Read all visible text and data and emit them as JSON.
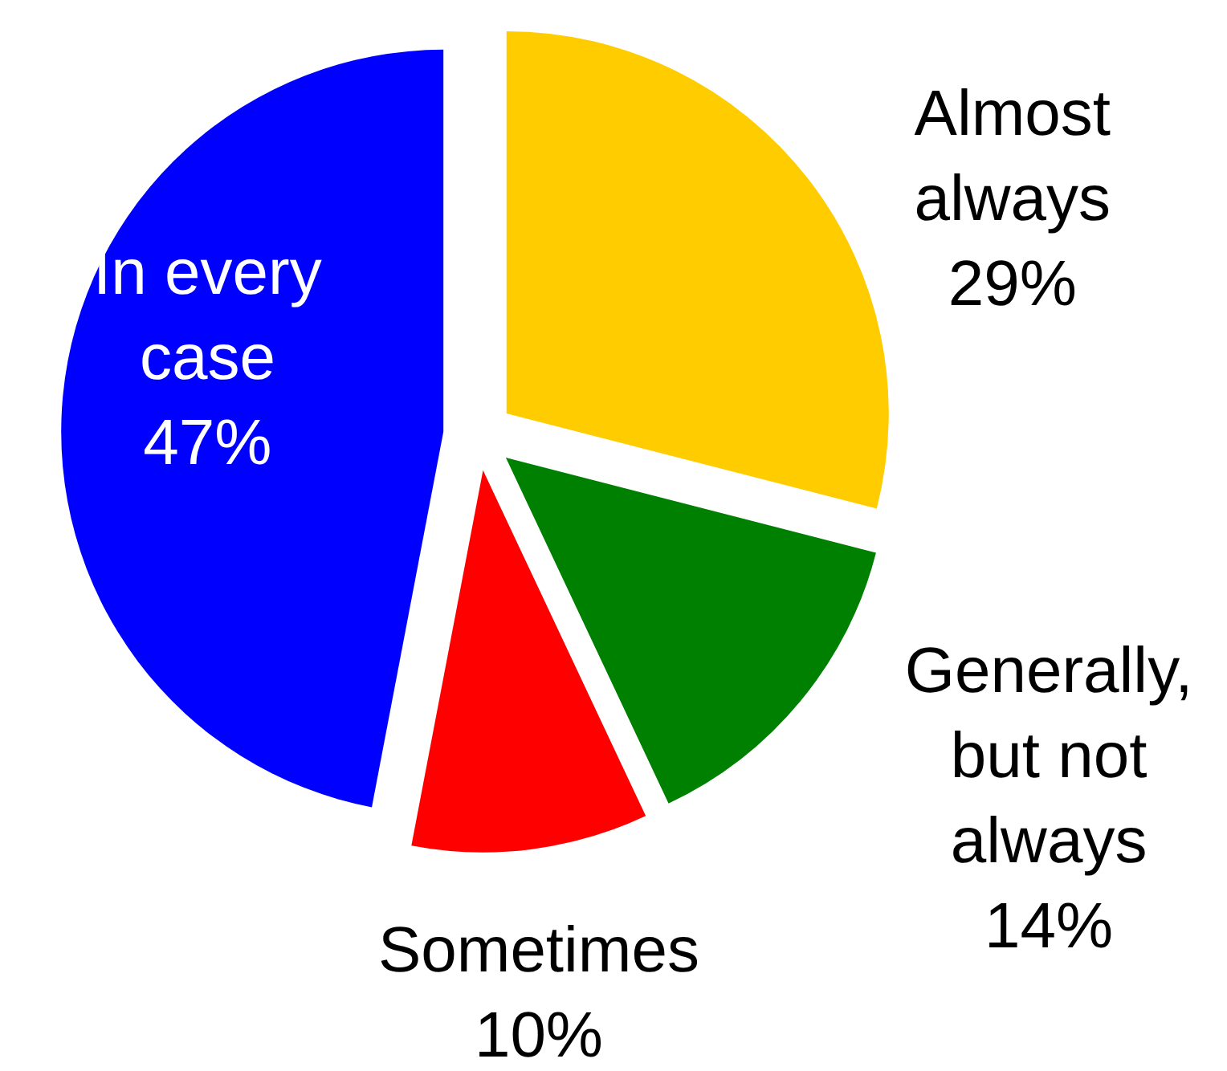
{
  "chart_data": {
    "type": "pie",
    "categories": [
      "Almost always",
      "Generally, but not always",
      "Sometimes",
      "In every case"
    ],
    "values": [
      29,
      14,
      10,
      47
    ],
    "value_labels": [
      "29%",
      "14%",
      "10%",
      "47%"
    ],
    "colors": [
      "#ffcc00",
      "#008000",
      "#ff0000",
      "#0000ff"
    ]
  }
}
